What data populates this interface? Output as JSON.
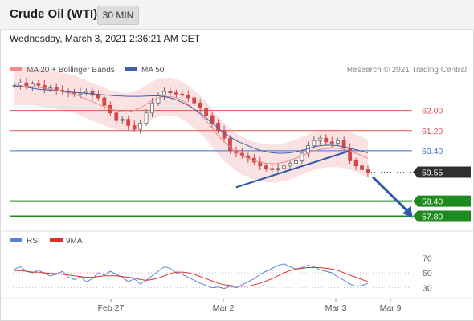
{
  "header": {
    "title": "Crude Oil (WTI)",
    "timeframe": "30 MIN"
  },
  "datetime": "Wednesday, March 3, 2021 2:36:21 AM CET",
  "legend": {
    "ma20": "MA 20 + Bollinger Bands",
    "ma50": "MA 50",
    "copyright": "Research © 2021 Trading Central"
  },
  "rsi_legend": {
    "rsi": "RSI",
    "ma": "9MA"
  },
  "colors": {
    "price_up": "#6b6b6b",
    "price_down": "#d14848",
    "ma20": "#f08a8a",
    "band": "#fbe2e2",
    "ma50": "#3f5fa8",
    "resistance": "#e05454",
    "pivot": "#3a6fc4",
    "support": "#1f8a1f",
    "arrow": "#2e59a8",
    "rsi": "#5b84d6",
    "rsi_ma": "#d9342b"
  },
  "chart_data": [
    {
      "type": "line",
      "title": "",
      "ylim": [
        57.4,
        63.2
      ],
      "x_ticks": [
        "Feb 27",
        "Mar 2",
        "Mar 3",
        "Mar 9"
      ],
      "levels": [
        {
          "label": "62.00",
          "value": 62.0,
          "kind": "resistance"
        },
        {
          "label": "61.20",
          "value": 61.2,
          "kind": "resistance"
        },
        {
          "label": "60.40",
          "value": 60.4,
          "kind": "pivot"
        },
        {
          "label": "59.55",
          "value": 59.55,
          "kind": "last"
        },
        {
          "label": "58.40",
          "value": 58.4,
          "kind": "support"
        },
        {
          "label": "57.80",
          "value": 57.8,
          "kind": "support"
        }
      ],
      "series": [
        {
          "name": "Price",
          "values": [
            63.0,
            63.1,
            62.95,
            63.05,
            63.0,
            62.85,
            62.9,
            62.8,
            62.75,
            62.7,
            62.65,
            62.7,
            62.75,
            62.6,
            62.5,
            62.2,
            61.9,
            61.6,
            61.65,
            61.4,
            61.25,
            61.5,
            61.9,
            62.3,
            62.6,
            62.75,
            62.7,
            62.65,
            62.6,
            62.5,
            62.3,
            62.1,
            61.8,
            61.5,
            61.2,
            60.9,
            60.4,
            60.3,
            60.2,
            60.1,
            59.95,
            59.8,
            59.7,
            59.65,
            59.7,
            59.8,
            59.9,
            60.0,
            60.3,
            60.6,
            60.8,
            60.9,
            60.75,
            60.7,
            60.8,
            60.5,
            60.0,
            59.8,
            59.65,
            59.55
          ]
        },
        {
          "name": "MA 20",
          "values": [
            62.95,
            62.96,
            62.96,
            62.95,
            62.92,
            62.88,
            62.85,
            62.8,
            62.75,
            62.7,
            62.65,
            62.55,
            62.45,
            62.35,
            62.25,
            62.15,
            62.05,
            62.0,
            61.95,
            61.95,
            62.0,
            62.1,
            62.25,
            62.4,
            62.5,
            62.55,
            62.55,
            62.5,
            62.4,
            62.25,
            62.05,
            61.85,
            61.6,
            61.3,
            61.0,
            60.75,
            60.55,
            60.35,
            60.2,
            60.1,
            60.0,
            59.95,
            59.9,
            59.88,
            59.9,
            59.95,
            60.02,
            60.1,
            60.2,
            60.3,
            60.4,
            60.45,
            60.48,
            60.5,
            60.5,
            60.45,
            60.4,
            60.3,
            60.2,
            60.1
          ]
        },
        {
          "name": "MA 50",
          "values": [
            62.98,
            62.95,
            62.92,
            62.88,
            62.84,
            62.82,
            62.8,
            62.78,
            62.76,
            62.74,
            62.72,
            62.7,
            62.68,
            62.66,
            62.64,
            62.62,
            62.6,
            62.58,
            62.57,
            62.56,
            62.56,
            62.56,
            62.57,
            62.58,
            62.58,
            62.55,
            62.5,
            62.42,
            62.32,
            62.2,
            62.05,
            61.9,
            61.7,
            61.5,
            61.3,
            61.1,
            60.95,
            60.8,
            60.7,
            60.6,
            60.5,
            60.42,
            60.36,
            60.32,
            60.3,
            60.3,
            60.32,
            60.36,
            60.42,
            60.48,
            60.55,
            60.6,
            60.62,
            60.62,
            60.6,
            60.56,
            60.5,
            60.44,
            60.38,
            60.32
          ]
        }
      ],
      "trendline": {
        "from": 58.95,
        "to": 60.4
      }
    },
    {
      "type": "line",
      "title": "",
      "ylim": [
        20,
        80
      ],
      "y_ticks": [
        70,
        50,
        30
      ],
      "series": [
        {
          "name": "RSI",
          "values": [
            55,
            58,
            52,
            50,
            54,
            49,
            46,
            48,
            52,
            44,
            41,
            45,
            38,
            42,
            50,
            47,
            52,
            48,
            44,
            38,
            42,
            35,
            40,
            46,
            52,
            58,
            56,
            50,
            48,
            44,
            40,
            36,
            33,
            30,
            31,
            29,
            32,
            30,
            34,
            38,
            42,
            48,
            52,
            56,
            60,
            62,
            58,
            55,
            57,
            60,
            58,
            54,
            52,
            50,
            44,
            40,
            35,
            32,
            33,
            36
          ]
        },
        {
          "name": "9MA",
          "values": [
            53,
            53,
            52,
            51,
            51,
            50,
            49,
            49,
            48,
            47,
            46,
            45,
            44,
            44,
            45,
            46,
            46,
            46,
            45,
            44,
            43,
            41,
            40,
            41,
            43,
            46,
            49,
            51,
            51,
            50,
            48,
            45,
            42,
            39,
            36,
            34,
            33,
            32,
            32,
            32,
            34,
            36,
            39,
            42,
            46,
            50,
            53,
            55,
            56,
            57,
            57,
            57,
            56,
            55,
            53,
            50,
            47,
            44,
            41,
            38
          ]
        }
      ]
    }
  ]
}
